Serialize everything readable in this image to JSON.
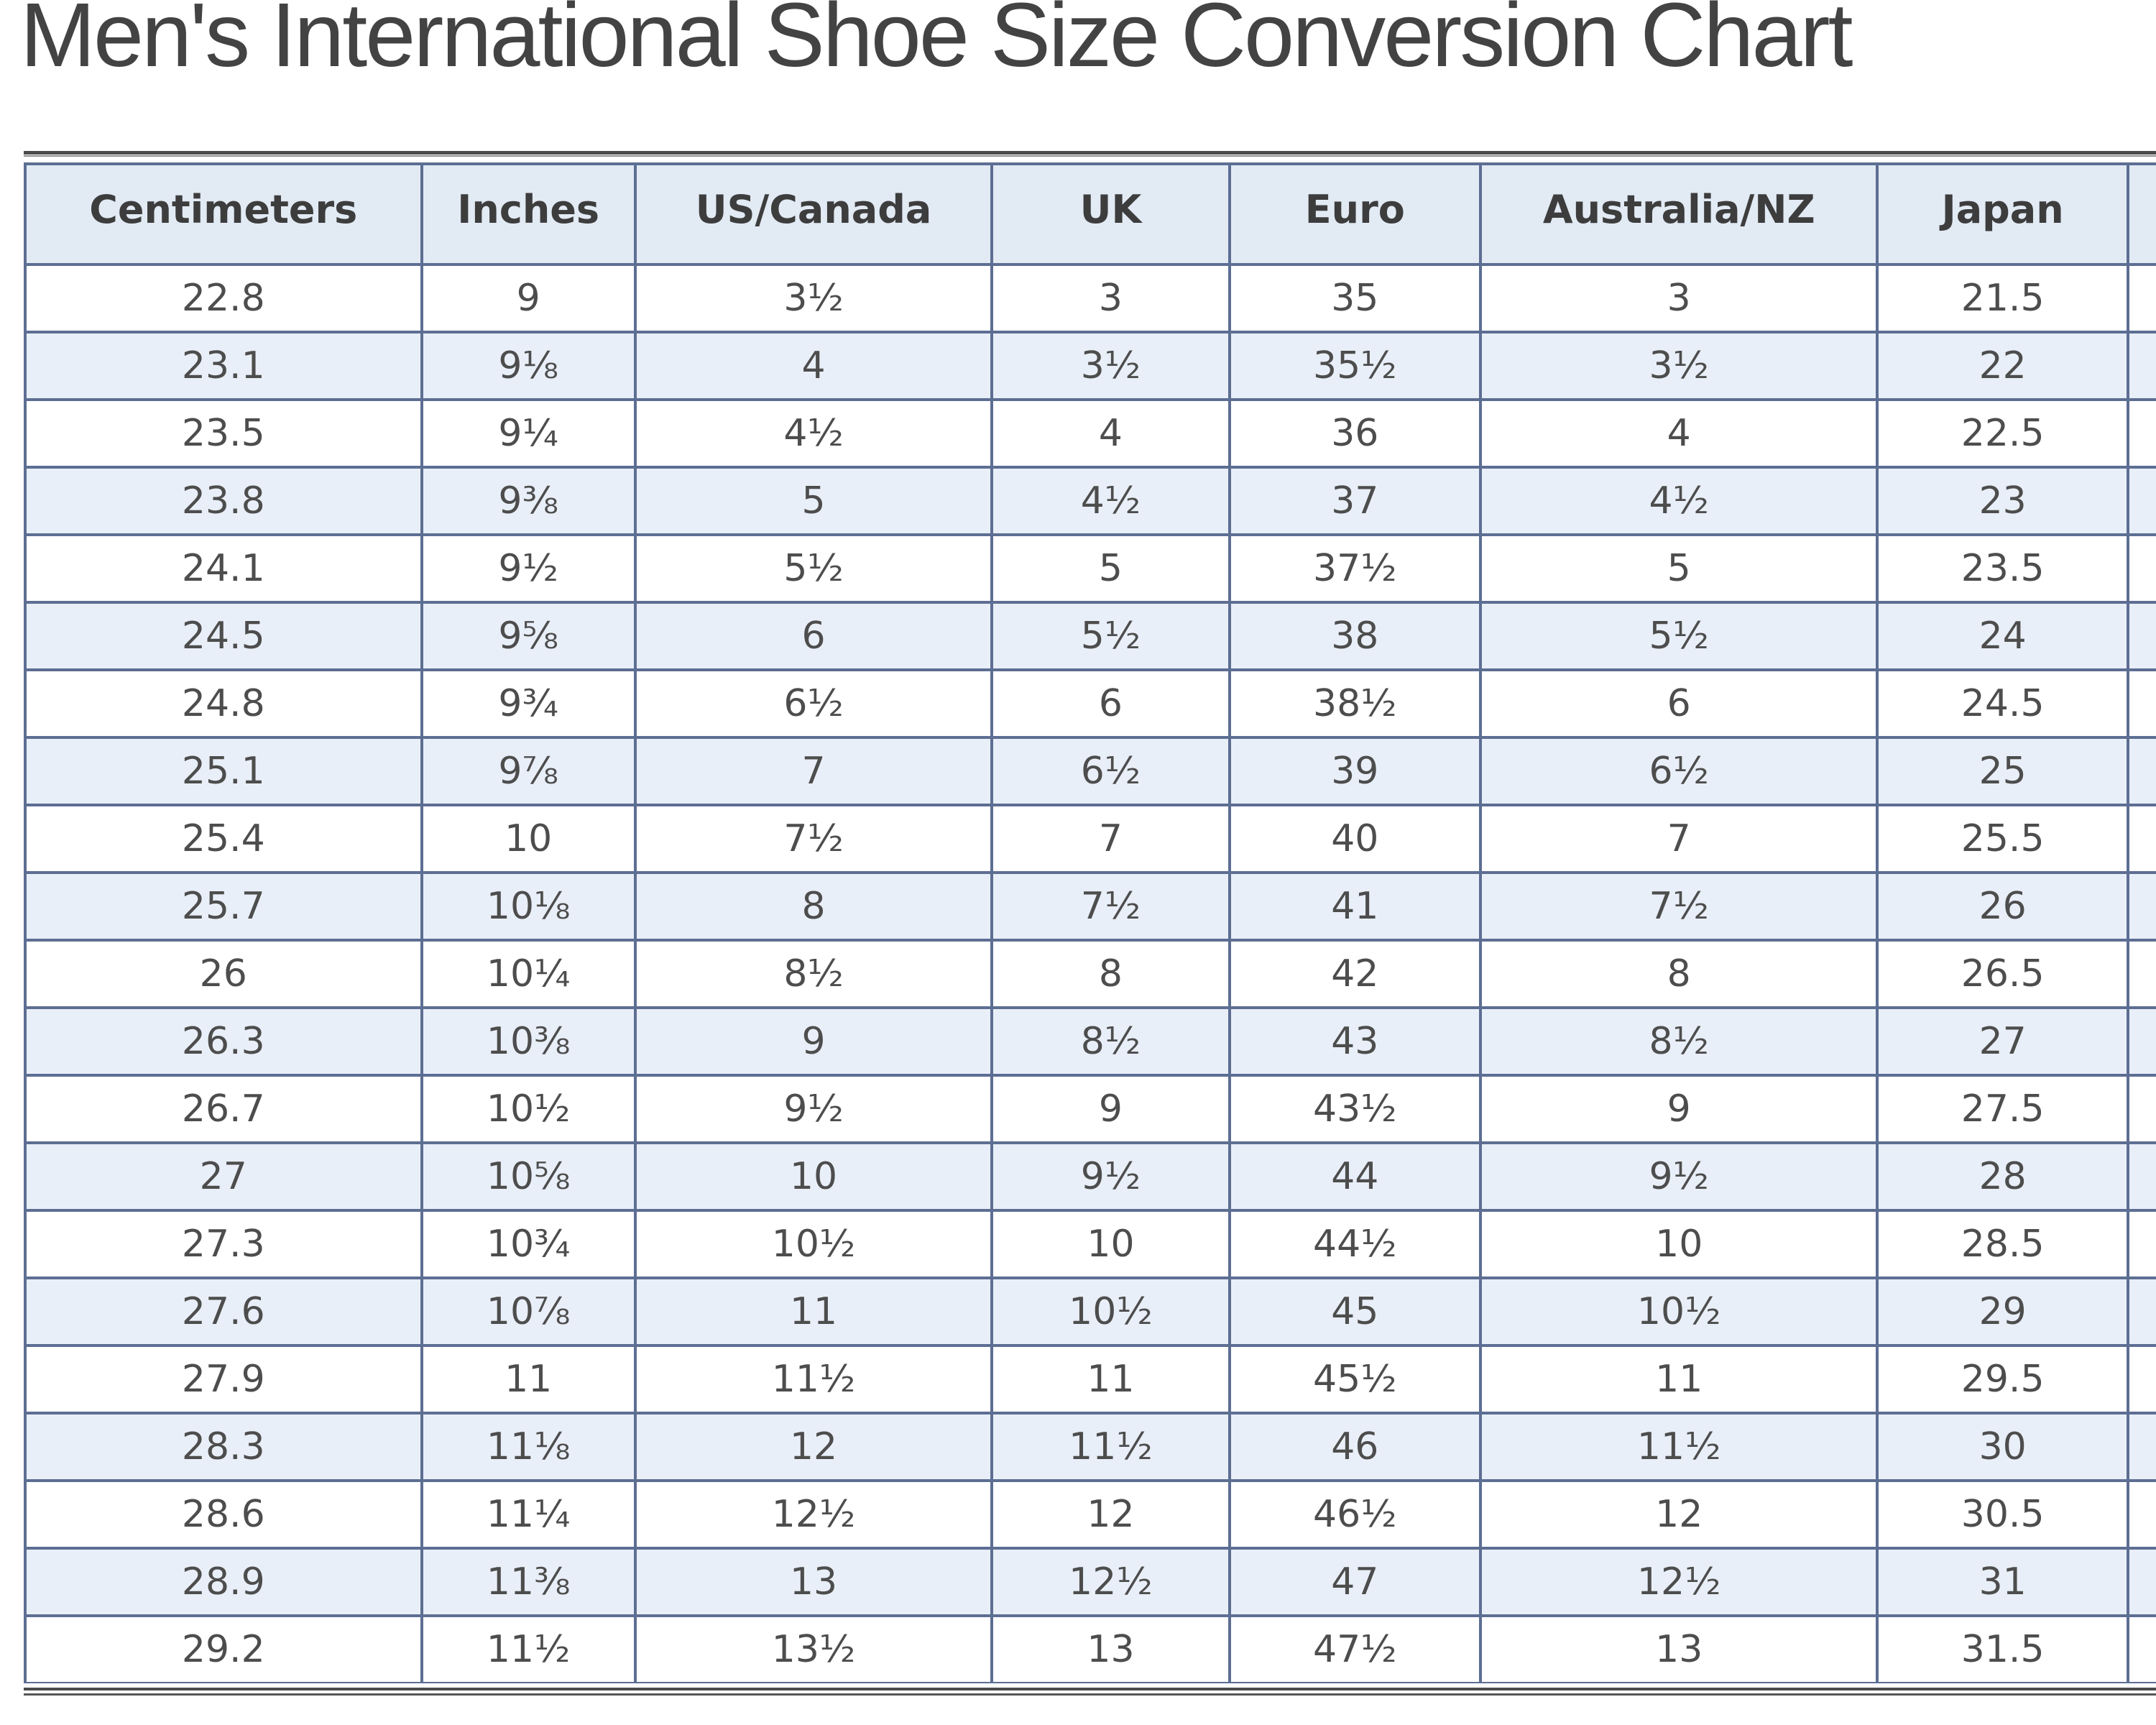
{
  "title": "Men's International Shoe Size Conversion Chart",
  "chart_data": {
    "type": "table",
    "title": "Men's International Shoe Size Conversion Chart",
    "columns": [
      "Centimeters",
      "Inches",
      "US/Canada",
      "UK",
      "Euro",
      "Australia/NZ",
      "Japan",
      ""
    ],
    "rows": [
      [
        "22.8",
        "9",
        "3½",
        "3",
        "35",
        "3",
        "21.5",
        ""
      ],
      [
        "23.1",
        "9⅛",
        "4",
        "3½",
        "35½",
        "3½",
        "22",
        ""
      ],
      [
        "23.5",
        "9¼",
        "4½",
        "4",
        "36",
        "4",
        "22.5",
        ""
      ],
      [
        "23.8",
        "9⅜",
        "5",
        "4½",
        "37",
        "4½",
        "23",
        ""
      ],
      [
        "24.1",
        "9½",
        "5½",
        "5",
        "37½",
        "5",
        "23.5",
        ""
      ],
      [
        "24.5",
        "9⅝",
        "6",
        "5½",
        "38",
        "5½",
        "24",
        ""
      ],
      [
        "24.8",
        "9¾",
        "6½",
        "6",
        "38½",
        "6",
        "24.5",
        ""
      ],
      [
        "25.1",
        "9⅞",
        "7",
        "6½",
        "39",
        "6½",
        "25",
        ""
      ],
      [
        "25.4",
        "10",
        "7½",
        "7",
        "40",
        "7",
        "25.5",
        ""
      ],
      [
        "25.7",
        "10⅛",
        "8",
        "7½",
        "41",
        "7½",
        "26",
        ""
      ],
      [
        "26",
        "10¼",
        "8½",
        "8",
        "42",
        "8",
        "26.5",
        ""
      ],
      [
        "26.3",
        "10⅜",
        "9",
        "8½",
        "43",
        "8½",
        "27",
        ""
      ],
      [
        "26.7",
        "10½",
        "9½",
        "9",
        "43½",
        "9",
        "27.5",
        ""
      ],
      [
        "27",
        "10⅝",
        "10",
        "9½",
        "44",
        "9½",
        "28",
        ""
      ],
      [
        "27.3",
        "10¾",
        "10½",
        "10",
        "44½",
        "10",
        "28.5",
        ""
      ],
      [
        "27.6",
        "10⅞",
        "11",
        "10½",
        "45",
        "10½",
        "29",
        ""
      ],
      [
        "27.9",
        "11",
        "11½",
        "11",
        "45½",
        "11",
        "29.5",
        ""
      ],
      [
        "28.3",
        "11⅛",
        "12",
        "11½",
        "46",
        "11½",
        "30",
        ""
      ],
      [
        "28.6",
        "11¼",
        "12½",
        "12",
        "46½",
        "12",
        "30.5",
        ""
      ],
      [
        "28.9",
        "11⅜",
        "13",
        "12½",
        "47",
        "12½",
        "31",
        ""
      ],
      [
        "29.2",
        "11½",
        "13½",
        "13",
        "47½",
        "13",
        "31.5",
        ""
      ]
    ],
    "layout_hints": {
      "striped_rows": "odd data rows (2nd, 4th, ...) are light blue",
      "eighth_column_cut_off_at_right_edge": true
    }
  },
  "colors": {
    "header_bg": "#e2eaf4",
    "stripe_bg": "#e9eff8",
    "row_bg": "#ffffff",
    "grid_border": "#5d6e93",
    "rule_dark": "#4b4b4b",
    "rule_light": "#8f8f8f",
    "title_text": "#434343",
    "header_text": "#3d3d3d",
    "cell_text": "#4d4d4d"
  }
}
